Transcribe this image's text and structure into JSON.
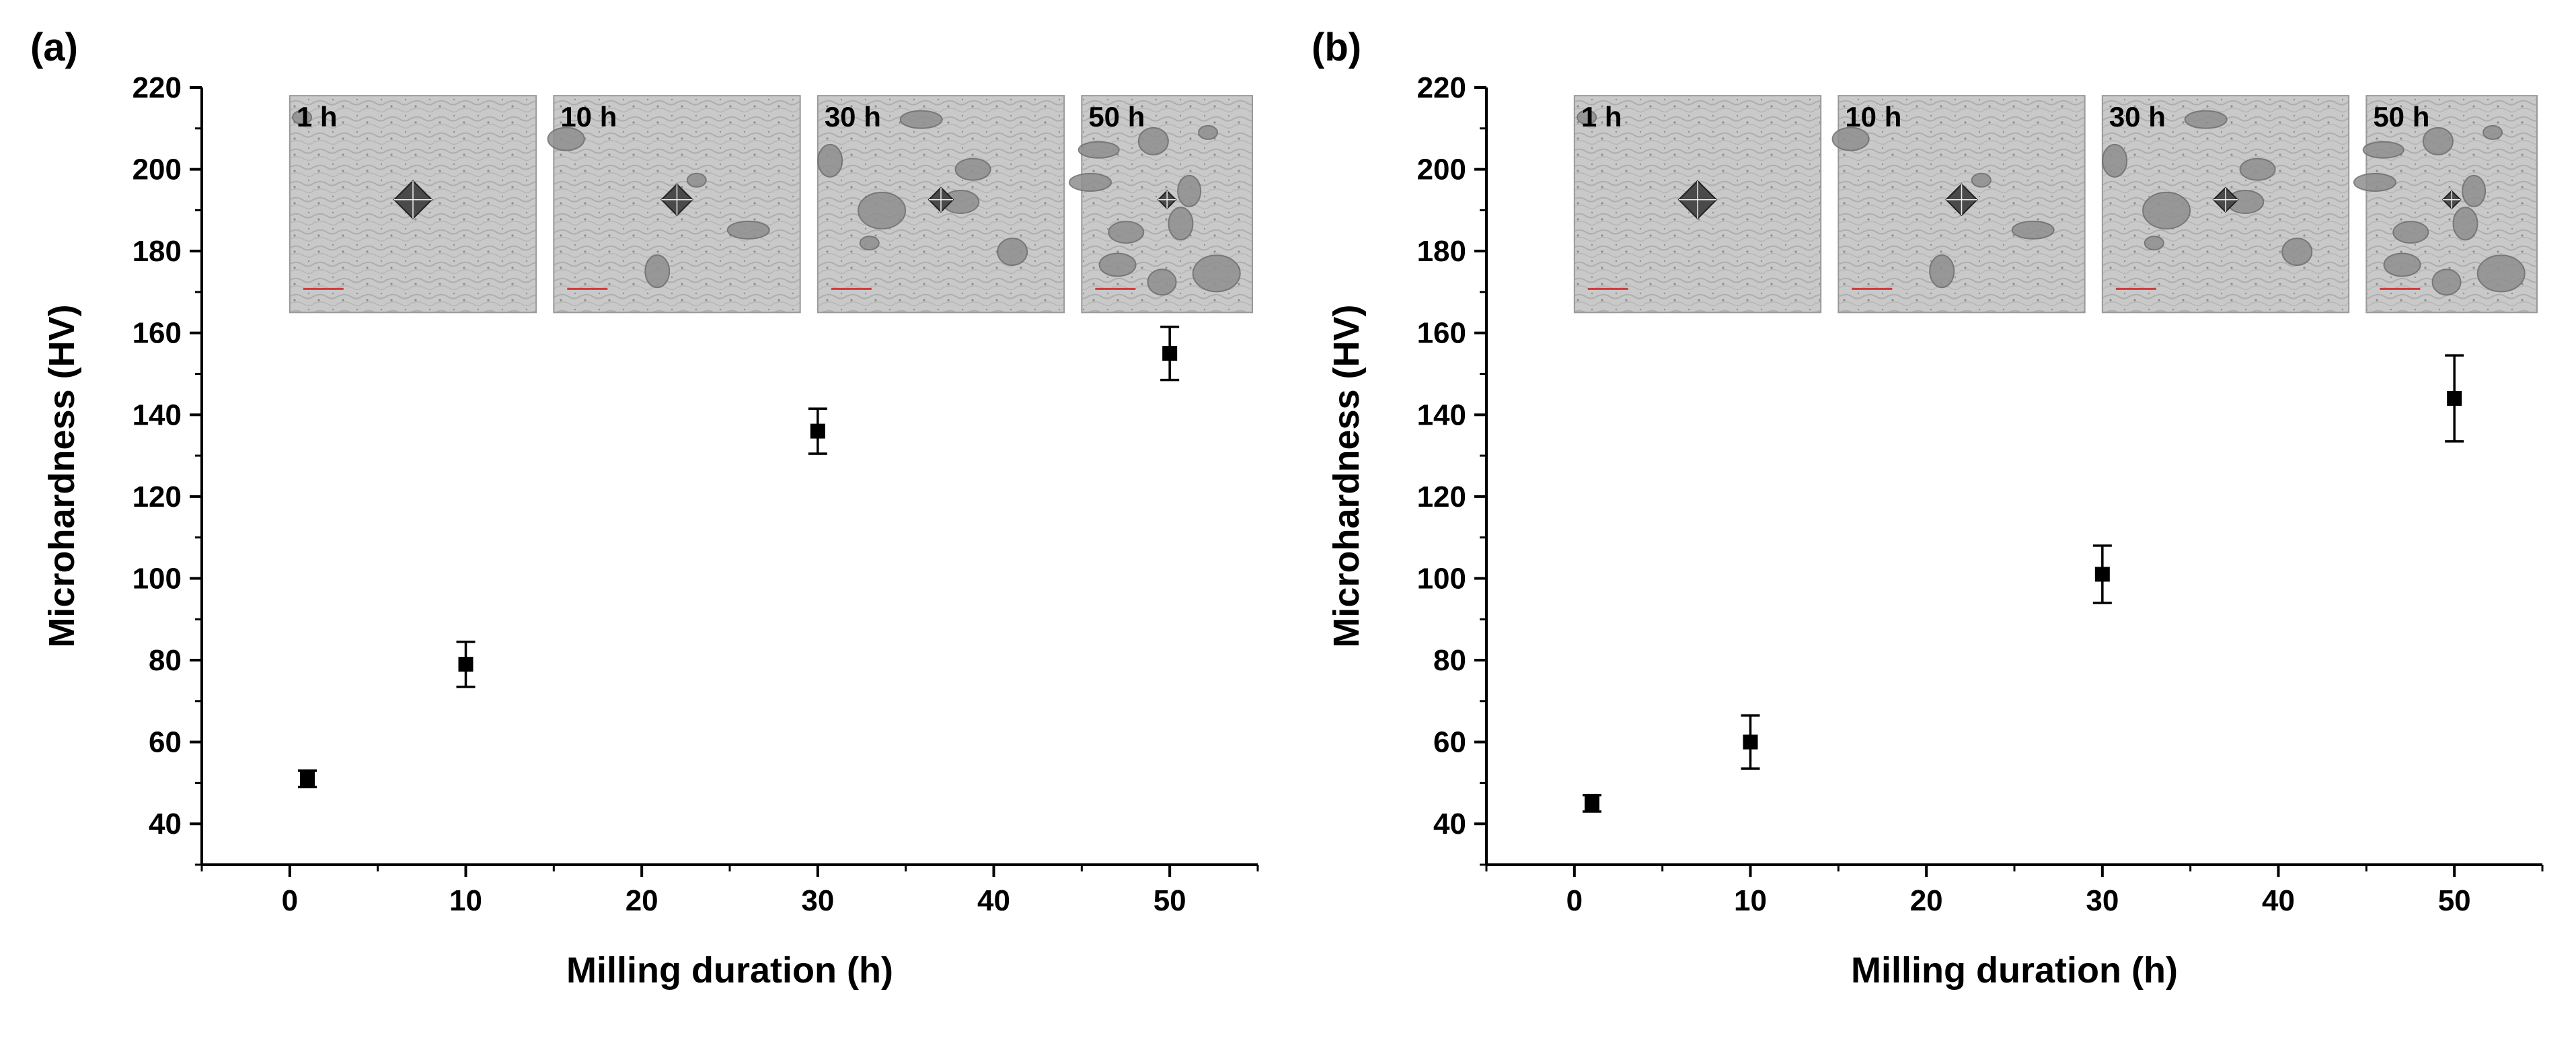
{
  "chart_data": [
    {
      "type": "scatter",
      "panel_label": "(a)",
      "xlabel": "Milling duration (h)",
      "ylabel": "Microhardness (HV)",
      "xlim": [
        -5,
        55
      ],
      "ylim": [
        30,
        220
      ],
      "xticks": [
        0,
        10,
        20,
        30,
        40,
        50
      ],
      "yticks": [
        40,
        60,
        80,
        100,
        120,
        140,
        160,
        180,
        200,
        220
      ],
      "x": [
        1,
        10,
        30,
        50
      ],
      "y": [
        51,
        79,
        136,
        155
      ],
      "yerr": [
        2,
        5.5,
        5.5,
        6.5
      ],
      "grid": false,
      "marker_color": "#000000",
      "insets": [
        {
          "label": "1 h",
          "x_from": 0,
          "x_to": 14,
          "y_from": 165,
          "y_to": 218
        },
        {
          "label": "10 h",
          "x_from": 15,
          "x_to": 29,
          "y_from": 165,
          "y_to": 218
        },
        {
          "label": "30 h",
          "x_from": 30,
          "x_to": 44,
          "y_from": 165,
          "y_to": 218
        },
        {
          "label": "50 h",
          "x_from": 45,
          "x_to": 59,
          "y_from": 165,
          "y_to": 218
        }
      ]
    },
    {
      "type": "scatter",
      "panel_label": "(b)",
      "xlabel": "Milling duration (h)",
      "ylabel": "Microhardness (HV)",
      "xlim": [
        -5,
        55
      ],
      "ylim": [
        30,
        220
      ],
      "xticks": [
        0,
        10,
        20,
        30,
        40,
        50
      ],
      "yticks": [
        40,
        60,
        80,
        100,
        120,
        140,
        160,
        180,
        200,
        220
      ],
      "x": [
        1,
        10,
        30,
        50
      ],
      "y": [
        45,
        60,
        101,
        144
      ],
      "yerr": [
        2,
        6.5,
        7,
        10.5
      ],
      "grid": false,
      "marker_color": "#000000",
      "insets": [
        {
          "label": "1 h",
          "x_from": 0,
          "x_to": 14,
          "y_from": 165,
          "y_to": 218
        },
        {
          "label": "10 h",
          "x_from": 15,
          "x_to": 29,
          "y_from": 165,
          "y_to": 218
        },
        {
          "label": "30 h",
          "x_from": 30,
          "x_to": 44,
          "y_from": 165,
          "y_to": 218
        },
        {
          "label": "50 h",
          "x_from": 45,
          "x_to": 59,
          "y_from": 165,
          "y_to": 218
        }
      ]
    }
  ]
}
